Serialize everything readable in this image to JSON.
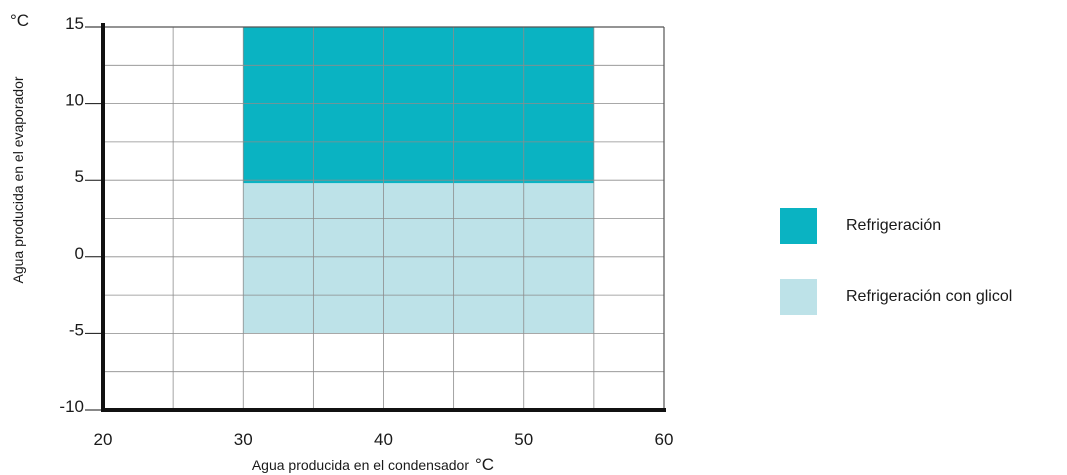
{
  "chart_data": {
    "type": "area",
    "xlabel": "Agua producida en el condensador",
    "xunit": "°C",
    "ylabel": "Agua producida en el evaporador",
    "yunit": "°C",
    "xlim": [
      20,
      60
    ],
    "ylim": [
      -10,
      15
    ],
    "xticks": [
      20,
      30,
      40,
      50,
      60
    ],
    "yticks": [
      15,
      10,
      5,
      0,
      -5,
      -10
    ],
    "x_minor_step": 5,
    "y_minor_step": 2.5,
    "grid": true,
    "legend_position": "right",
    "regions": [
      {
        "name": "Refrigeración",
        "color": "#0ab3c2",
        "x": [
          30,
          55
        ],
        "y": [
          4.8,
          15
        ]
      },
      {
        "name": "Refrigeración con glicol",
        "color": "#bde2e8",
        "x": [
          30,
          55
        ],
        "y": [
          -5,
          4.8
        ]
      }
    ]
  }
}
